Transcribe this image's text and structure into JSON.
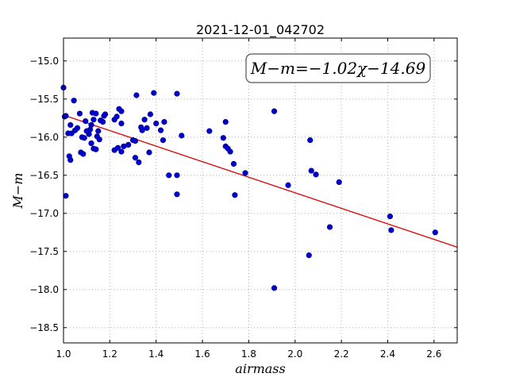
{
  "chart_data": {
    "type": "scatter",
    "title": "2021-12-01_042702",
    "xlabel": "airmass",
    "ylabel": "M−m",
    "xlim": [
      1.0,
      2.7
    ],
    "ylim": [
      -18.7,
      -14.7
    ],
    "x_ticks": [
      "1.0",
      "1.2",
      "1.4",
      "1.6",
      "1.8",
      "2.0",
      "2.2",
      "2.4",
      "2.6"
    ],
    "y_ticks": [
      "−15.0",
      "−15.5",
      "−16.0",
      "−16.5",
      "−17.0",
      "−17.5",
      "−18.0",
      "−18.5"
    ],
    "x_tick_values": [
      1.0,
      1.2,
      1.4,
      1.6,
      1.8,
      2.0,
      2.2,
      2.4,
      2.6
    ],
    "y_tick_values": [
      -15.0,
      -15.5,
      -16.0,
      -16.5,
      -17.0,
      -17.5,
      -18.0,
      -18.5
    ],
    "grid": true,
    "fit_label": "M−m=−1.02χ−14.69",
    "fit": {
      "slope": -1.02,
      "intercept": -14.69
    },
    "points": [
      [
        1.0,
        -15.35
      ],
      [
        1.005,
        -15.73
      ],
      [
        1.01,
        -15.72
      ],
      [
        1.01,
        -16.77
      ],
      [
        1.02,
        -15.95
      ],
      [
        1.025,
        -16.25
      ],
      [
        1.03,
        -16.3
      ],
      [
        1.03,
        -15.84
      ],
      [
        1.035,
        -15.95
      ],
      [
        1.045,
        -15.52
      ],
      [
        1.05,
        -15.91
      ],
      [
        1.06,
        -15.88
      ],
      [
        1.07,
        -15.69
      ],
      [
        1.075,
        -16.2
      ],
      [
        1.08,
        -16.0
      ],
      [
        1.085,
        -16.22
      ],
      [
        1.09,
        -16.01
      ],
      [
        1.095,
        -15.79
      ],
      [
        1.1,
        -15.92
      ],
      [
        1.11,
        -15.96
      ],
      [
        1.115,
        -15.9
      ],
      [
        1.12,
        -16.08
      ],
      [
        1.12,
        -15.84
      ],
      [
        1.125,
        -15.68
      ],
      [
        1.13,
        -15.77
      ],
      [
        1.13,
        -16.15
      ],
      [
        1.14,
        -15.69
      ],
      [
        1.14,
        -16.16
      ],
      [
        1.145,
        -15.99
      ],
      [
        1.15,
        -15.92
      ],
      [
        1.155,
        -16.03
      ],
      [
        1.16,
        -15.78
      ],
      [
        1.17,
        -15.8
      ],
      [
        1.175,
        -15.72
      ],
      [
        1.18,
        -15.7
      ],
      [
        1.22,
        -16.17
      ],
      [
        1.22,
        -15.77
      ],
      [
        1.23,
        -15.73
      ],
      [
        1.235,
        -16.14
      ],
      [
        1.24,
        -15.63
      ],
      [
        1.25,
        -15.66
      ],
      [
        1.25,
        -15.82
      ],
      [
        1.25,
        -16.19
      ],
      [
        1.26,
        -16.12
      ],
      [
        1.28,
        -16.1
      ],
      [
        1.3,
        -16.04
      ],
      [
        1.31,
        -16.27
      ],
      [
        1.31,
        -16.05
      ],
      [
        1.315,
        -15.45
      ],
      [
        1.325,
        -16.33
      ],
      [
        1.335,
        -15.87
      ],
      [
        1.34,
        -15.91
      ],
      [
        1.35,
        -15.77
      ],
      [
        1.36,
        -15.88
      ],
      [
        1.37,
        -16.2
      ],
      [
        1.375,
        -15.7
      ],
      [
        1.39,
        -15.42
      ],
      [
        1.4,
        -15.82
      ],
      [
        1.42,
        -15.91
      ],
      [
        1.43,
        -16.04
      ],
      [
        1.435,
        -15.8
      ],
      [
        1.455,
        -16.5
      ],
      [
        1.49,
        -16.5
      ],
      [
        1.49,
        -15.43
      ],
      [
        1.49,
        -16.75
      ],
      [
        1.51,
        -15.98
      ],
      [
        1.63,
        -15.92
      ],
      [
        1.69,
        -16.01
      ],
      [
        1.7,
        -16.12
      ],
      [
        1.7,
        -15.8
      ],
      [
        1.71,
        -16.15
      ],
      [
        1.72,
        -16.19
      ],
      [
        1.735,
        -16.35
      ],
      [
        1.74,
        -16.76
      ],
      [
        1.785,
        -16.47
      ],
      [
        1.91,
        -15.66
      ],
      [
        1.91,
        -17.98
      ],
      [
        1.97,
        -16.63
      ],
      [
        2.06,
        -17.55
      ],
      [
        2.065,
        -16.04
      ],
      [
        2.07,
        -16.44
      ],
      [
        2.09,
        -16.49
      ],
      [
        2.15,
        -17.18
      ],
      [
        2.19,
        -16.59
      ],
      [
        2.41,
        -17.04
      ],
      [
        2.415,
        -17.22
      ],
      [
        2.605,
        -17.25
      ]
    ]
  }
}
